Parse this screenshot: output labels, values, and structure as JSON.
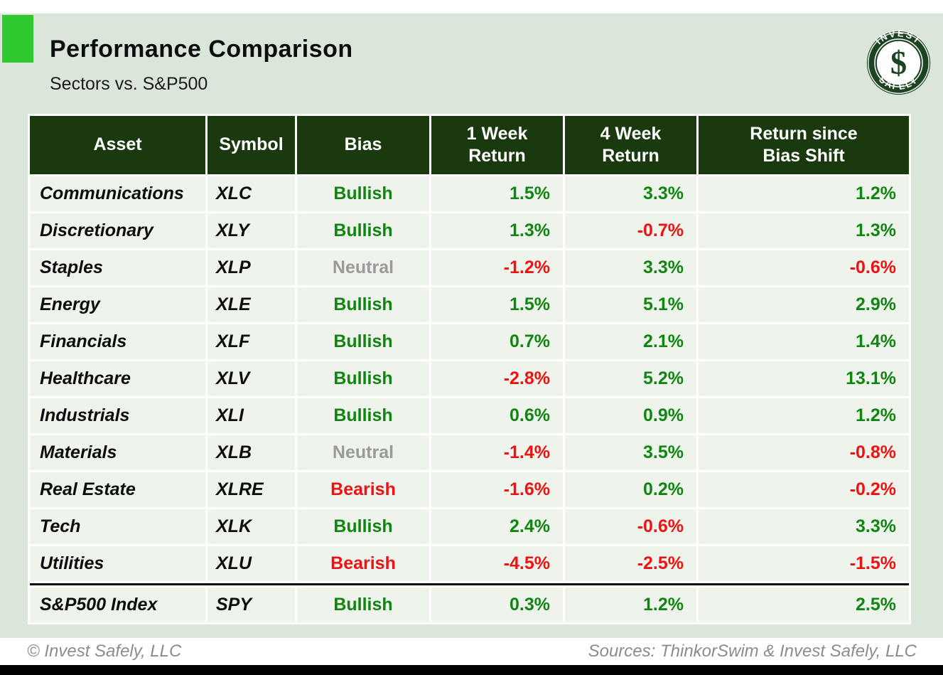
{
  "header": {
    "title": "Performance Comparison",
    "subtitle": "Sectors vs. S&P500"
  },
  "logo": {
    "arc_top": "INVEST",
    "arc_bottom": "SAFELY",
    "monogram": "$"
  },
  "colors": {
    "accent_green": "#2fc82f",
    "panel_green": "#dae6d9",
    "header_dark_green": "#1b390f",
    "positive_green": "#118511",
    "negative_red": "#ee1212",
    "neutral_gray": "#9a9a9a"
  },
  "table": {
    "columns": [
      "Asset",
      "Symbol",
      "Bias",
      "1 Week\nReturn",
      "4 Week\nReturn",
      "Return since\nBias Shift"
    ],
    "rows": [
      {
        "asset": "Communications",
        "symbol": "XLC",
        "bias": "Bullish",
        "bias_tone": "pos",
        "returns": [
          {
            "v": "1.5%",
            "tone": "pos"
          },
          {
            "v": "3.3%",
            "tone": "pos"
          },
          {
            "v": "1.2%",
            "tone": "pos"
          }
        ]
      },
      {
        "asset": "Discretionary",
        "symbol": "XLY",
        "bias": "Bullish",
        "bias_tone": "pos",
        "returns": [
          {
            "v": "1.3%",
            "tone": "pos"
          },
          {
            "v": "-0.7%",
            "tone": "neg"
          },
          {
            "v": "1.3%",
            "tone": "pos"
          }
        ]
      },
      {
        "asset": "Staples",
        "symbol": "XLP",
        "bias": "Neutral",
        "bias_tone": "neutral",
        "returns": [
          {
            "v": "-1.2%",
            "tone": "neg"
          },
          {
            "v": "3.3%",
            "tone": "pos"
          },
          {
            "v": "-0.6%",
            "tone": "neg"
          }
        ]
      },
      {
        "asset": "Energy",
        "symbol": "XLE",
        "bias": "Bullish",
        "bias_tone": "pos",
        "returns": [
          {
            "v": "1.5%",
            "tone": "pos"
          },
          {
            "v": "5.1%",
            "tone": "pos"
          },
          {
            "v": "2.9%",
            "tone": "pos"
          }
        ]
      },
      {
        "asset": "Financials",
        "symbol": "XLF",
        "bias": "Bullish",
        "bias_tone": "pos",
        "returns": [
          {
            "v": "0.7%",
            "tone": "pos"
          },
          {
            "v": "2.1%",
            "tone": "pos"
          },
          {
            "v": "1.4%",
            "tone": "pos"
          }
        ]
      },
      {
        "asset": "Healthcare",
        "symbol": "XLV",
        "bias": "Bullish",
        "bias_tone": "pos",
        "returns": [
          {
            "v": "-2.8%",
            "tone": "neg"
          },
          {
            "v": "5.2%",
            "tone": "pos"
          },
          {
            "v": "13.1%",
            "tone": "pos"
          }
        ]
      },
      {
        "asset": "Industrials",
        "symbol": "XLI",
        "bias": "Bullish",
        "bias_tone": "pos",
        "returns": [
          {
            "v": "0.6%",
            "tone": "pos"
          },
          {
            "v": "0.9%",
            "tone": "pos"
          },
          {
            "v": "1.2%",
            "tone": "pos"
          }
        ]
      },
      {
        "asset": "Materials",
        "symbol": "XLB",
        "bias": "Neutral",
        "bias_tone": "neutral",
        "returns": [
          {
            "v": "-1.4%",
            "tone": "neg"
          },
          {
            "v": "3.5%",
            "tone": "pos"
          },
          {
            "v": "-0.8%",
            "tone": "neg"
          }
        ]
      },
      {
        "asset": "Real Estate",
        "symbol": "XLRE",
        "bias": "Bearish",
        "bias_tone": "neg",
        "returns": [
          {
            "v": "-1.6%",
            "tone": "neg"
          },
          {
            "v": "0.2%",
            "tone": "pos"
          },
          {
            "v": "-0.2%",
            "tone": "neg"
          }
        ]
      },
      {
        "asset": "Tech",
        "symbol": "XLK",
        "bias": "Bullish",
        "bias_tone": "pos",
        "returns": [
          {
            "v": "2.4%",
            "tone": "pos"
          },
          {
            "v": "-0.6%",
            "tone": "neg"
          },
          {
            "v": "3.3%",
            "tone": "pos"
          }
        ]
      },
      {
        "asset": "Utilities",
        "symbol": "XLU",
        "bias": "Bearish",
        "bias_tone": "neg",
        "returns": [
          {
            "v": "-4.5%",
            "tone": "neg"
          },
          {
            "v": "-2.5%",
            "tone": "neg"
          },
          {
            "v": "-1.5%",
            "tone": "neg"
          }
        ]
      },
      {
        "asset": "S&P500 Index",
        "symbol": "SPY",
        "bias": "Bullish",
        "bias_tone": "pos",
        "divider_above": true,
        "returns": [
          {
            "v": "0.3%",
            "tone": "pos"
          },
          {
            "v": "1.2%",
            "tone": "pos"
          },
          {
            "v": "2.5%",
            "tone": "pos"
          }
        ]
      }
    ]
  },
  "footer": {
    "left": "© Invest Safely, LLC",
    "right": "Sources: ThinkorSwim & Invest Safely, LLC"
  }
}
